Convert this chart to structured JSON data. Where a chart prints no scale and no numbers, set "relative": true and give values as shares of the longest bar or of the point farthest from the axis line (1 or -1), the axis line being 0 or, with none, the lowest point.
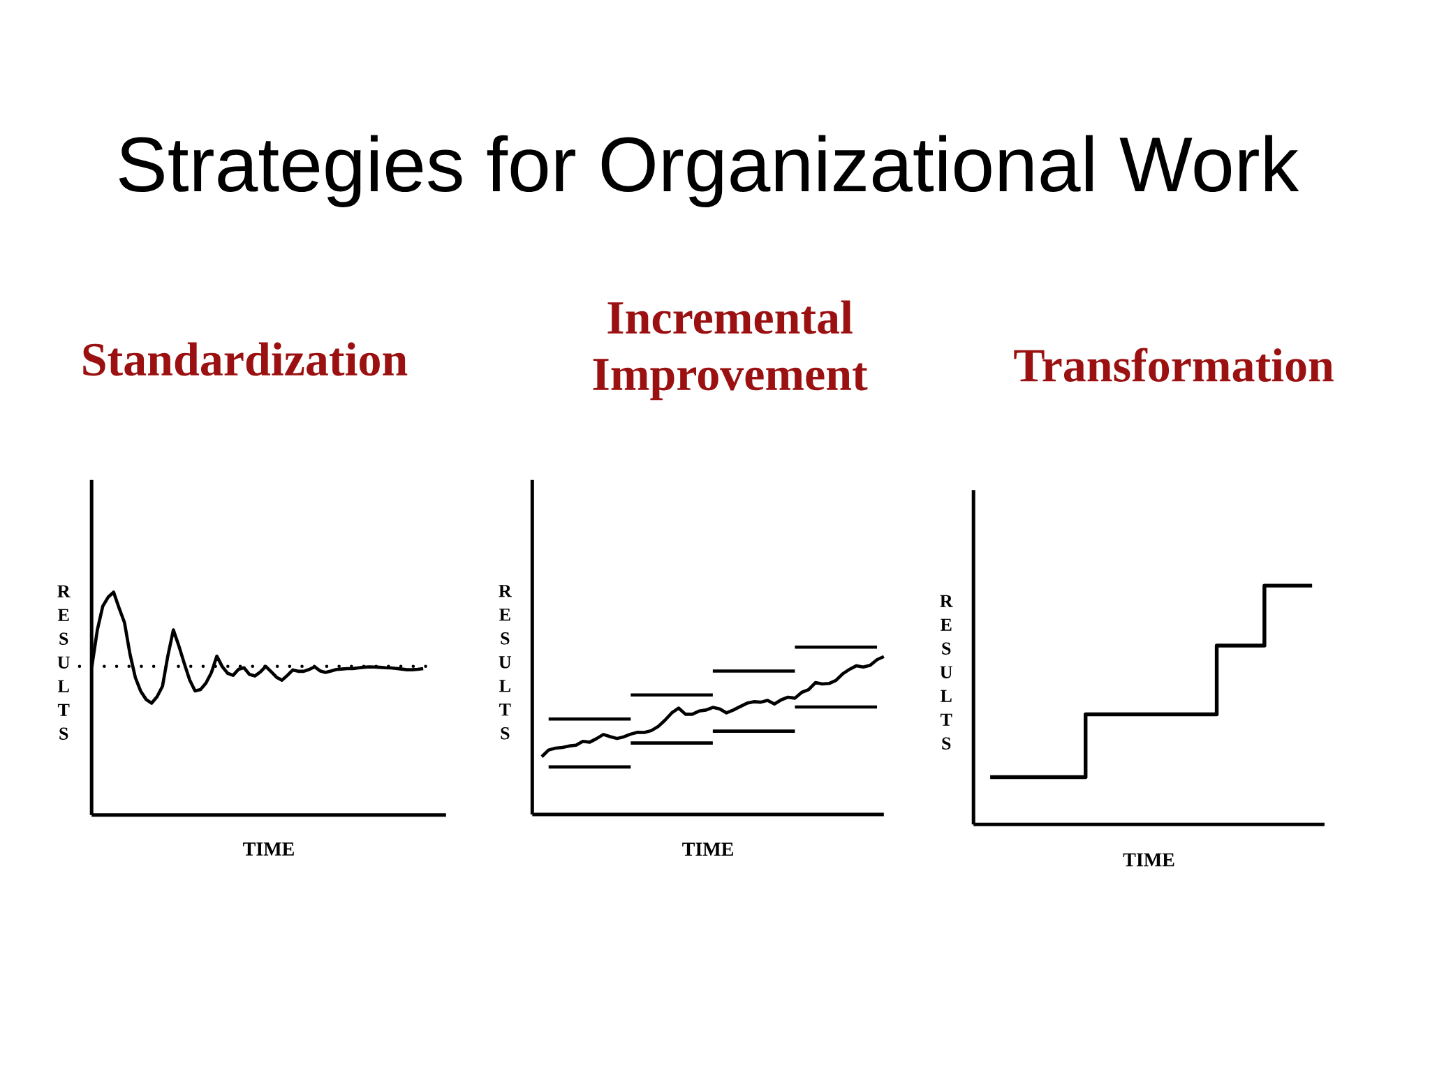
{
  "chart_data": [
    {
      "type": "other",
      "title": "Strategies for Organizational Work"
    },
    {
      "type": "line",
      "title": "Standardization",
      "xlabel": "TIME",
      "ylabel": "RESULTS",
      "relative": true,
      "categories": [
        null,
        null,
        null,
        null,
        null,
        null,
        null,
        null,
        null,
        null,
        null,
        null,
        null,
        null,
        null,
        null,
        null,
        null,
        null,
        null,
        null,
        null,
        null,
        null,
        null,
        null,
        null,
        null,
        null,
        null,
        null,
        null,
        null,
        null,
        null,
        null,
        null,
        null,
        null,
        null,
        null,
        null,
        null,
        null,
        null,
        null,
        null,
        null,
        null,
        null,
        null,
        null,
        null,
        null,
        null,
        null,
        null,
        null,
        null,
        null,
        null,
        null
      ],
      "values": [
        0.667,
        0.83,
        0.937,
        0.978,
        1,
        0.93,
        0.864,
        0.724,
        0.617,
        0.555,
        0.518,
        0.502,
        0.531,
        0.578,
        0.716,
        0.831,
        0.76,
        0.681,
        0.606,
        0.557,
        0.563,
        0.592,
        0.639,
        0.713,
        0.666,
        0.636,
        0.627,
        0.654,
        0.661,
        0.631,
        0.624,
        0.642,
        0.667,
        0.643,
        0.618,
        0.605,
        0.627,
        0.651,
        0.645,
        0.645,
        0.653,
        0.665,
        0.647,
        0.64,
        0.646,
        0.653,
        0.655,
        0.657,
        0.657,
        0.66,
        0.663,
        0.665,
        0.664,
        0.663,
        0.661,
        0.66,
        0.658,
        0.655,
        0.652,
        0.652,
        0.654,
        0.657
      ],
      "color": "#000000",
      "ref_lines": [
        {
          "axis": "y",
          "value": 0.667,
          "color": "#000000",
          "line_style": "dotted"
        }
      ]
    },
    {
      "type": "line",
      "title": "Incremental Improvement",
      "xlabel": "TIME",
      "ylabel": "RESULTS",
      "relative": true,
      "categories": [
        null,
        null,
        null,
        null,
        null,
        null,
        null,
        null,
        null,
        null,
        null,
        null,
        null,
        null,
        null,
        null,
        null,
        null,
        null,
        null,
        null,
        null,
        null,
        null,
        null,
        null,
        null,
        null,
        null,
        null,
        null,
        null,
        null,
        null,
        null,
        null,
        null,
        null,
        null,
        null,
        null,
        null,
        null,
        null,
        null,
        null,
        null,
        null,
        null,
        null,
        null
      ],
      "series": [
        {
          "color": "#000000",
          "values": [
            0.345,
            0.385,
            0.396,
            0.4,
            0.409,
            0.414,
            0.437,
            0.432,
            0.453,
            0.478,
            0.465,
            0.454,
            0.464,
            0.48,
            0.491,
            0.49,
            0.501,
            0.525,
            0.563,
            0.607,
            0.636,
            0.599,
            0.599,
            0.618,
            0.624,
            0.64,
            0.631,
            0.607,
            0.624,
            0.645,
            0.665,
            0.674,
            0.671,
            0.682,
            0.66,
            0.685,
            0.701,
            0.695,
            0.73,
            0.746,
            0.788,
            0.78,
            0.783,
            0.801,
            0.841,
            0.868,
            0.889,
            0.881,
            0.892,
            0.925,
            0.944
          ]
        },
        {
          "color": "#000000",
          "values": [
            null,
            0.57,
            0.57,
            0.57,
            0.57,
            0.57,
            0.57,
            0.57,
            0.57,
            0.57,
            0.57,
            0.57,
            0.57,
            0.57,
            null,
            null,
            null,
            null,
            null,
            null,
            null,
            null,
            null,
            null,
            null,
            null,
            null,
            null,
            null,
            null,
            null,
            null,
            null,
            null,
            null,
            null,
            null,
            null,
            null,
            null,
            null,
            null,
            null,
            null,
            null,
            null,
            null,
            null,
            null,
            null,
            null
          ]
        },
        {
          "color": "#000000",
          "values": [
            null,
            0.284,
            0.284,
            0.284,
            0.284,
            0.284,
            0.284,
            0.284,
            0.284,
            0.284,
            0.284,
            0.284,
            0.284,
            0.284,
            null,
            null,
            null,
            null,
            null,
            null,
            null,
            null,
            null,
            null,
            null,
            null,
            null,
            null,
            null,
            null,
            null,
            null,
            null,
            null,
            null,
            null,
            null,
            null,
            null,
            null,
            null,
            null,
            null,
            null,
            null,
            null,
            null,
            null,
            null,
            null,
            null
          ]
        },
        {
          "color": "#000000",
          "values": [
            null,
            null,
            null,
            null,
            null,
            null,
            null,
            null,
            null,
            null,
            null,
            null,
            null,
            0.714,
            0.714,
            0.714,
            0.714,
            0.714,
            0.714,
            0.714,
            0.714,
            0.714,
            0.714,
            0.714,
            0.714,
            0.714,
            null,
            null,
            null,
            null,
            null,
            null,
            null,
            null,
            null,
            null,
            null,
            null,
            null,
            null,
            null,
            null,
            null,
            null,
            null,
            null,
            null,
            null,
            null,
            null,
            null
          ]
        },
        {
          "color": "#000000",
          "values": [
            null,
            null,
            null,
            null,
            null,
            null,
            null,
            null,
            null,
            null,
            null,
            null,
            null,
            0.427,
            0.427,
            0.427,
            0.427,
            0.427,
            0.427,
            0.427,
            0.427,
            0.427,
            0.427,
            0.427,
            0.427,
            0.427,
            null,
            null,
            null,
            null,
            null,
            null,
            null,
            null,
            null,
            null,
            null,
            null,
            null,
            null,
            null,
            null,
            null,
            null,
            null,
            null,
            null,
            null,
            null,
            null,
            null
          ]
        },
        {
          "color": "#000000",
          "values": [
            null,
            null,
            null,
            null,
            null,
            null,
            null,
            null,
            null,
            null,
            null,
            null,
            null,
            null,
            null,
            null,
            null,
            null,
            null,
            null,
            null,
            null,
            null,
            null,
            null,
            0.857,
            0.857,
            0.857,
            0.857,
            0.857,
            0.857,
            0.857,
            0.857,
            0.857,
            0.857,
            0.857,
            0.857,
            0.857,
            null,
            null,
            null,
            null,
            null,
            null,
            null,
            null,
            null,
            null,
            null,
            null,
            null
          ]
        },
        {
          "color": "#000000",
          "values": [
            null,
            null,
            null,
            null,
            null,
            null,
            null,
            null,
            null,
            null,
            null,
            null,
            null,
            null,
            null,
            null,
            null,
            null,
            null,
            null,
            null,
            null,
            null,
            null,
            null,
            0.498,
            0.498,
            0.498,
            0.498,
            0.498,
            0.498,
            0.498,
            0.498,
            0.498,
            0.498,
            0.498,
            0.498,
            0.498,
            null,
            null,
            null,
            null,
            null,
            null,
            null,
            null,
            null,
            null,
            null,
            null,
            null
          ]
        },
        {
          "color": "#000000",
          "values": [
            null,
            null,
            null,
            null,
            null,
            null,
            null,
            null,
            null,
            null,
            null,
            null,
            null,
            null,
            null,
            null,
            null,
            null,
            null,
            null,
            null,
            null,
            null,
            null,
            null,
            null,
            null,
            null,
            null,
            null,
            null,
            null,
            null,
            null,
            null,
            null,
            null,
            1,
            1,
            1,
            1,
            1,
            1,
            1,
            1,
            1,
            1,
            1,
            1,
            1,
            null
          ]
        },
        {
          "color": "#000000",
          "values": [
            null,
            null,
            null,
            null,
            null,
            null,
            null,
            null,
            null,
            null,
            null,
            null,
            null,
            null,
            null,
            null,
            null,
            null,
            null,
            null,
            null,
            null,
            null,
            null,
            null,
            null,
            null,
            null,
            null,
            null,
            null,
            null,
            null,
            null,
            null,
            null,
            null,
            0.642,
            0.642,
            0.642,
            0.642,
            0.642,
            0.642,
            0.642,
            0.642,
            0.642,
            0.642,
            0.642,
            0.642,
            0.642,
            null
          ]
        }
      ]
    },
    {
      "type": "step",
      "title": "Transformation",
      "xlabel": "TIME",
      "ylabel": "RESULTS",
      "relative": true,
      "categories": [
        null,
        null,
        null,
        null,
        null,
        null,
        null,
        null,
        null,
        null,
        null,
        null,
        null,
        null,
        null,
        null,
        null,
        null,
        null,
        null,
        null,
        null,
        null,
        null,
        null,
        null,
        null,
        null
      ],
      "values": [
        0.198,
        0.198,
        0.198,
        0.198,
        0.198,
        0.198,
        0.198,
        0.198,
        0.461,
        0.461,
        0.461,
        0.461,
        0.461,
        0.461,
        0.461,
        0.461,
        0.461,
        0.461,
        0.461,
        0.749,
        0.749,
        0.749,
        0.749,
        1,
        1,
        1,
        1,
        1
      ],
      "color": "#000000"
    }
  ]
}
